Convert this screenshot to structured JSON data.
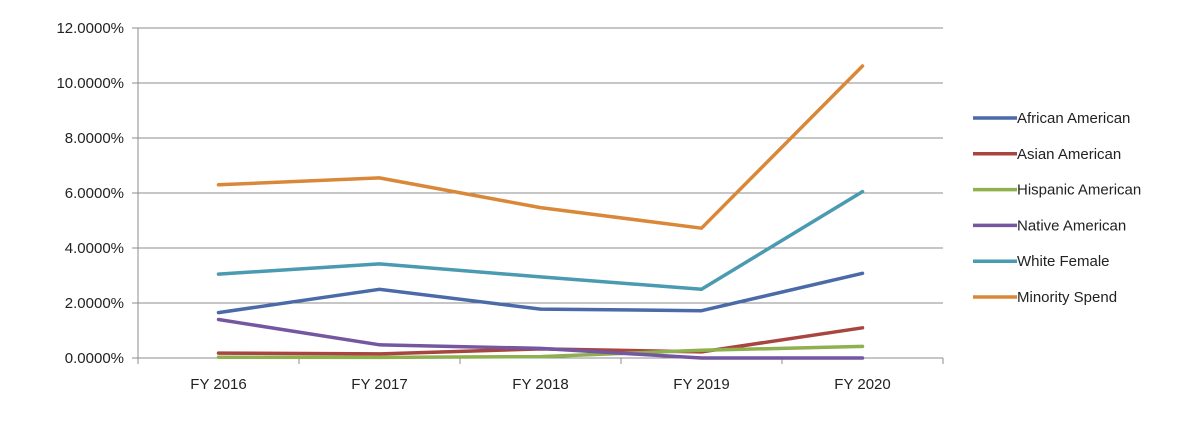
{
  "chart_data": {
    "type": "line",
    "categories": [
      "FY 2016",
      "FY 2017",
      "FY 2018",
      "FY 2019",
      "FY 2020"
    ],
    "ylim": [
      0,
      12
    ],
    "yticks": [
      0,
      2,
      4,
      6,
      8,
      10,
      12
    ],
    "ytick_labels": [
      "0.0000%",
      "2.0000%",
      "4.0000%",
      "6.0000%",
      "8.0000%",
      "10.0000%",
      "12.0000%"
    ],
    "grid": true,
    "legend_position": "right",
    "series": [
      {
        "name": "African American",
        "color": "#4A6AA8",
        "values": [
          1.65,
          2.5,
          1.78,
          1.72,
          3.08
        ]
      },
      {
        "name": "Asian American",
        "color": "#A8453F",
        "values": [
          0.18,
          0.15,
          0.33,
          0.22,
          1.1
        ]
      },
      {
        "name": "Hispanic American",
        "color": "#8EB04F",
        "values": [
          0.03,
          0.02,
          0.05,
          0.28,
          0.42
        ]
      },
      {
        "name": "Native American",
        "color": "#7457A0",
        "values": [
          1.4,
          0.48,
          0.35,
          0.0,
          0.0
        ]
      },
      {
        "name": "White Female",
        "color": "#4A9AB2",
        "values": [
          3.05,
          3.42,
          2.95,
          2.5,
          6.05
        ]
      },
      {
        "name": "Minority Spend",
        "color": "#D9883A",
        "values": [
          6.3,
          6.55,
          5.47,
          4.72,
          10.62
        ]
      }
    ]
  }
}
